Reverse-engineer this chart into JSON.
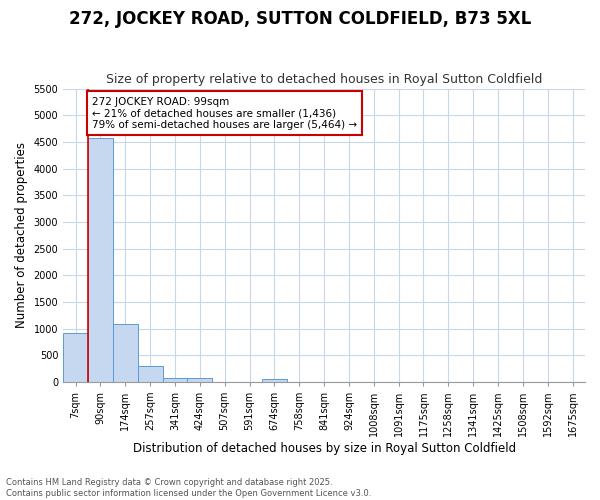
{
  "title": "272, JOCKEY ROAD, SUTTON COLDFIELD, B73 5XL",
  "subtitle": "Size of property relative to detached houses in Royal Sutton Coldfield",
  "xlabel": "Distribution of detached houses by size in Royal Sutton Coldfield",
  "ylabel": "Number of detached properties",
  "categories": [
    "7sqm",
    "90sqm",
    "174sqm",
    "257sqm",
    "341sqm",
    "424sqm",
    "507sqm",
    "591sqm",
    "674sqm",
    "758sqm",
    "841sqm",
    "924sqm",
    "1008sqm",
    "1091sqm",
    "1175sqm",
    "1258sqm",
    "1341sqm",
    "1425sqm",
    "1508sqm",
    "1592sqm",
    "1675sqm"
  ],
  "values": [
    920,
    4580,
    1080,
    290,
    80,
    70,
    0,
    0,
    50,
    0,
    0,
    0,
    0,
    0,
    0,
    0,
    0,
    0,
    0,
    0,
    0
  ],
  "bar_color": "#c5d8f0",
  "bar_edge_color": "#5b9bd5",
  "vline_x_index": 1,
  "vline_color": "#cc0000",
  "annotation_text": "272 JOCKEY ROAD: 99sqm\n← 21% of detached houses are smaller (1,436)\n79% of semi-detached houses are larger (5,464) →",
  "annotation_box_color": "#ffffff",
  "annotation_box_edge": "#cc0000",
  "ylim": [
    0,
    5500
  ],
  "yticks": [
    0,
    500,
    1000,
    1500,
    2000,
    2500,
    3000,
    3500,
    4000,
    4500,
    5000,
    5500
  ],
  "plot_bg_color": "#ffffff",
  "fig_bg_color": "#ffffff",
  "grid_color": "#c8d8e8",
  "footer_line1": "Contains HM Land Registry data © Crown copyright and database right 2025.",
  "footer_line2": "Contains public sector information licensed under the Open Government Licence v3.0.",
  "title_fontsize": 12,
  "subtitle_fontsize": 9,
  "tick_fontsize": 7,
  "label_fontsize": 8.5,
  "annot_fontsize": 7.5
}
